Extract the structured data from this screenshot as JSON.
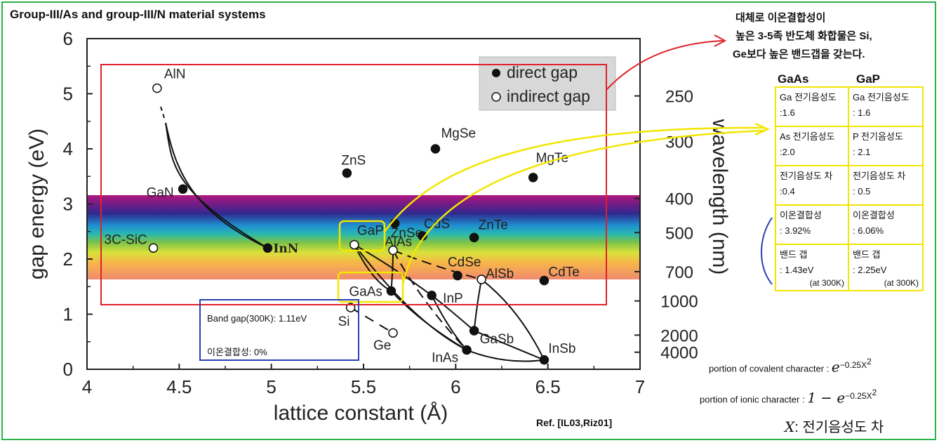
{
  "title": "Group-III/As and group-III/N material systems",
  "reference": "Ref. [IL03,Riz01]",
  "note": {
    "line1": "대체로 이온결합성이",
    "line2": "높은  3-5족 반도체 화합물은 Si,",
    "line3": "Ge보다 높은 밴드갭을 갖는다."
  },
  "comparison": {
    "col1": "GaAs",
    "col2": "GaP",
    "rows": [
      [
        "Ga 전기음성도",
        ":1.6",
        "Ga 전기음성도",
        ": 1.6"
      ],
      [
        "As 전기음성도",
        ":2.0",
        "P 전기음성도",
        ": 2.1"
      ],
      [
        "전기음성도 차",
        ":0.4",
        "전기음성도 차",
        ": 0.5"
      ],
      [
        "이온결합성",
        ": 3.92%",
        "이온결합성",
        ": 6.06%"
      ],
      [
        "밴드 갭",
        ": 1.43eV",
        "밴드 갭",
        ": 2.25eV"
      ]
    ],
    "temp_note": "(at 300K)"
  },
  "formulas": {
    "covalent_label": "portion of covalent character :",
    "covalent_expr": "e",
    "covalent_exp": "−0.25X",
    "ionic_label": "portion of ionic character :",
    "ionic_expr": "1 − e",
    "ionic_exp": "−0.25X",
    "x_def_var": "X",
    "x_def_text": ": 전기음성도  차"
  },
  "si_box": {
    "line1": "Band gap(300K): 1.11eV",
    "line2": "이온결합성: 0%"
  },
  "colors": {
    "frame": "#2db34a",
    "red_box": "#e0202a",
    "yellow": "#f2e600",
    "blue_box": "#2b3fb5"
  },
  "chart_data": {
    "type": "scatter",
    "xlabel": "lattice constant (Å)",
    "ylabel": "gap energy (eV)",
    "y2label": "wavelength (nm)",
    "xlim": [
      4,
      7
    ],
    "ylim": [
      0,
      6
    ],
    "xticks": [
      "4",
      "4.5",
      "5",
      "5.5",
      "6",
      "6.5",
      "7"
    ],
    "yticks": [
      "0",
      "1",
      "2",
      "3",
      "4",
      "5",
      "6"
    ],
    "y2ticks": [
      "250",
      "300",
      "400",
      "500",
      "700",
      "1000",
      "2000",
      "4000"
    ],
    "legend": {
      "direct": "direct gap",
      "indirect": "indirect gap",
      "position": "top-right"
    },
    "points": [
      {
        "name": "AlN",
        "x": 4.38,
        "y": 5.1,
        "gap": "indirect"
      },
      {
        "name": "GaN",
        "x": 4.52,
        "y": 3.27,
        "gap": "direct"
      },
      {
        "name": "InN",
        "x": 4.98,
        "y": 2.2,
        "gap": "direct"
      },
      {
        "name": "3C-SiC",
        "x": 4.36,
        "y": 2.2,
        "gap": "indirect"
      },
      {
        "name": "ZnS",
        "x": 5.41,
        "y": 3.56,
        "gap": "direct"
      },
      {
        "name": "MgSe",
        "x": 5.89,
        "y": 4.0,
        "gap": "direct"
      },
      {
        "name": "MgTe",
        "x": 6.42,
        "y": 3.48,
        "gap": "direct"
      },
      {
        "name": "ZnSe",
        "x": 5.67,
        "y": 2.65,
        "gap": "direct"
      },
      {
        "name": "GaP",
        "x": 5.45,
        "y": 2.26,
        "gap": "indirect"
      },
      {
        "name": "AlAs",
        "x": 5.66,
        "y": 2.16,
        "gap": "indirect"
      },
      {
        "name": "CdS",
        "x": 5.82,
        "y": 2.42,
        "gap": "direct"
      },
      {
        "name": "ZnTe",
        "x": 6.1,
        "y": 2.39,
        "gap": "direct"
      },
      {
        "name": "CdSe",
        "x": 6.01,
        "y": 1.7,
        "gap": "direct"
      },
      {
        "name": "AlSb",
        "x": 6.14,
        "y": 1.63,
        "gap": "indirect"
      },
      {
        "name": "CdTe",
        "x": 6.48,
        "y": 1.61,
        "gap": "direct"
      },
      {
        "name": "GaAs",
        "x": 5.65,
        "y": 1.42,
        "gap": "direct"
      },
      {
        "name": "InP",
        "x": 5.87,
        "y": 1.34,
        "gap": "direct"
      },
      {
        "name": "Si",
        "x": 5.43,
        "y": 1.12,
        "gap": "indirect"
      },
      {
        "name": "Ge",
        "x": 5.66,
        "y": 0.66,
        "gap": "indirect"
      },
      {
        "name": "GaSb",
        "x": 6.1,
        "y": 0.7,
        "gap": "direct"
      },
      {
        "name": "InAs",
        "x": 6.06,
        "y": 0.35,
        "gap": "direct"
      },
      {
        "name": "InSb",
        "x": 6.48,
        "y": 0.17,
        "gap": "direct"
      }
    ]
  }
}
